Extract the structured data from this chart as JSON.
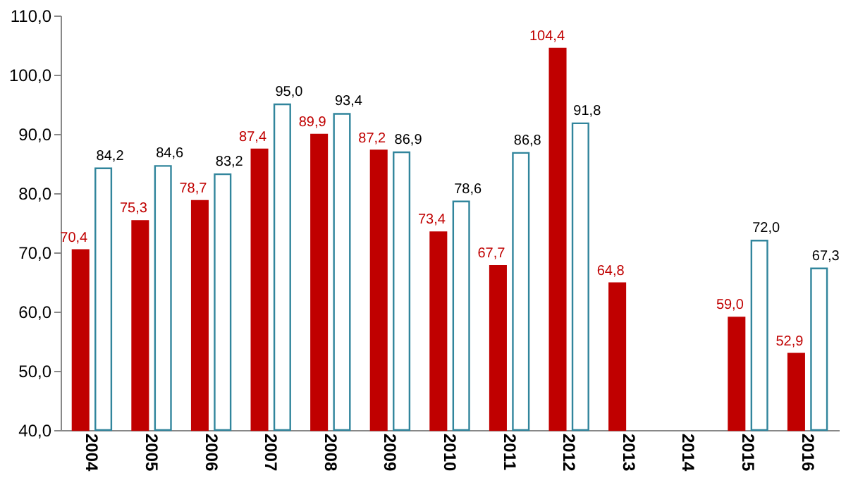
{
  "chart_data": {
    "type": "bar",
    "categories": [
      "2004",
      "2005",
      "2006",
      "2007",
      "2008",
      "2009",
      "2010",
      "2011",
      "2012",
      "2013",
      "2014",
      "2015",
      "2016"
    ],
    "series": [
      {
        "color": "#c00000",
        "values": [
          70.4,
          75.3,
          78.7,
          87.4,
          89.9,
          87.2,
          73.4,
          67.7,
          104.4,
          64.8,
          null,
          59.0,
          52.9
        ],
        "value_labels": [
          "70,4",
          "75,3",
          "78,7",
          "87,4",
          "89,9",
          "87,2",
          "73,4",
          "67,7",
          "104,4",
          "64,8",
          null,
          "59,0",
          "52,9"
        ]
      },
      {
        "color": "#31859c",
        "values": [
          84.2,
          84.6,
          83.2,
          95.0,
          93.4,
          86.9,
          78.6,
          86.8,
          91.8,
          null,
          null,
          72.0,
          67.3
        ],
        "value_labels": [
          "84,2",
          "84,6",
          "83,2",
          "95,0",
          "93,4",
          "86,9",
          "78,6",
          "86,8",
          "91,8",
          null,
          null,
          "72,0",
          "67,3"
        ]
      }
    ],
    "ylim": [
      40,
      110
    ],
    "yticks": [
      {
        "value": 40,
        "label": "40,0"
      },
      {
        "value": 50,
        "label": "50,0"
      },
      {
        "value": 60,
        "label": "60,0"
      },
      {
        "value": 70,
        "label": "70,0"
      },
      {
        "value": 80,
        "label": "80,0"
      },
      {
        "value": 90,
        "label": "90,0"
      },
      {
        "value": 100,
        "label": "100,0"
      },
      {
        "value": 110,
        "label": "110,0"
      }
    ],
    "grid": false
  }
}
